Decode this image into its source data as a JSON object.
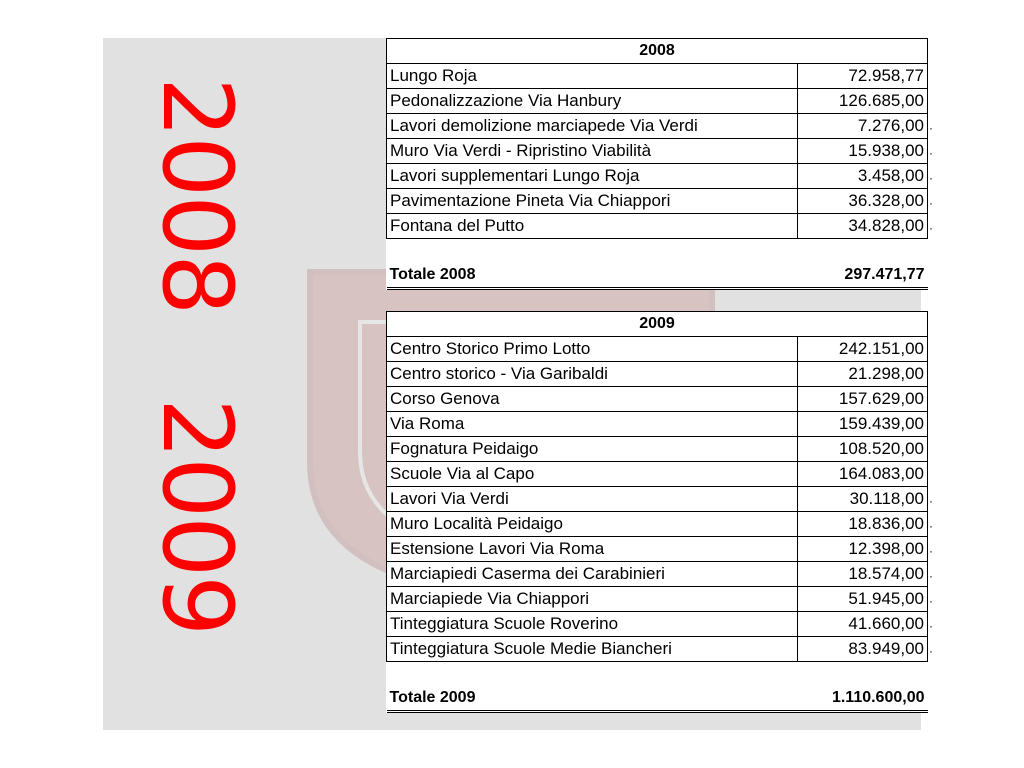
{
  "side_years": [
    "2008",
    "2009"
  ],
  "table_2008": {
    "header": "2008",
    "rows": [
      {
        "name": "Lungo Roja",
        "amount": "72.958,77"
      },
      {
        "name": "Pedonalizzazione Via Hanbury",
        "amount": "126.685,00"
      },
      {
        "name": "Lavori demolizione marciapede Via Verdi",
        "amount": "7.276,00"
      },
      {
        "name": "Muro Via Verdi - Ripristino Viabilità",
        "amount": "15.938,00"
      },
      {
        "name": "Lavori supplementari Lungo Roja",
        "amount": "3.458,00"
      },
      {
        "name": "Pavimentazione Pineta Via Chiappori",
        "amount": "36.328,00"
      },
      {
        "name": "Fontana del Putto",
        "amount": "34.828,00"
      }
    ],
    "total_label": "Totale 2008",
    "total_amount": "297.471,77"
  },
  "table_2009": {
    "header": "2009",
    "rows": [
      {
        "name": "Centro Storico Primo Lotto",
        "amount": "242.151,00"
      },
      {
        "name": "Centro storico - Via Garibaldi",
        "amount": "21.298,00"
      },
      {
        "name": "Corso Genova",
        "amount": "157.629,00"
      },
      {
        "name": "Via Roma",
        "amount": "159.439,00"
      },
      {
        "name": "Fognatura Peidaigo",
        "amount": "108.520,00"
      },
      {
        "name": "Scuole Via al Capo",
        "amount": "164.083,00"
      },
      {
        "name": "Lavori Via Verdi",
        "amount": "30.118,00"
      },
      {
        "name": "Muro Località Peidaigo",
        "amount": "18.836,00"
      },
      {
        "name": "Estensione Lavori Via Roma",
        "amount": "12.398,00"
      },
      {
        "name": "Marciapiedi Caserma dei Carabinieri",
        "amount": "18.574,00"
      },
      {
        "name": "Marciapiede Via Chiappori",
        "amount": "51.945,00"
      },
      {
        "name": "Tinteggiatura Scuole Roverino",
        "amount": "41.660,00"
      },
      {
        "name": "Tinteggiatura Scuole Medie Biancheri",
        "amount": "83.949,00"
      }
    ],
    "total_label": "Totale 2009",
    "total_amount": "1.110.600,00"
  },
  "colors": {
    "year_text": "#ff0000",
    "slide_background": "#e1e1e1"
  }
}
